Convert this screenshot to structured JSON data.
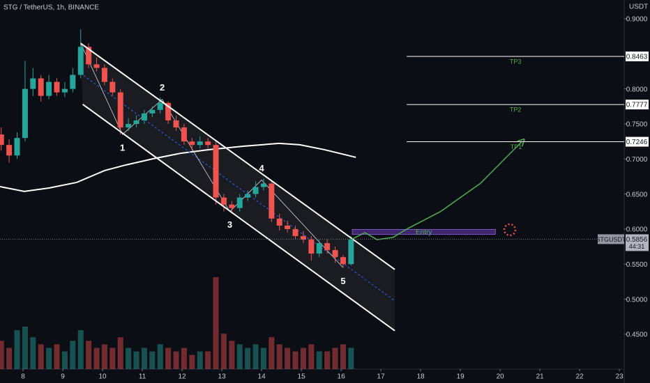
{
  "header": {
    "title": "STG / TetherUS, 1h, BINANCE",
    "currency": "USDT"
  },
  "chart_data": {
    "type": "candlestick",
    "x": [
      7.45,
      7.65,
      7.85,
      8.05,
      8.25,
      8.45,
      8.65,
      8.85,
      9.05,
      9.25,
      9.45,
      9.65,
      9.85,
      10.05,
      10.25,
      10.45,
      10.65,
      10.85,
      11.05,
      11.25,
      11.45,
      11.65,
      11.85,
      12.05,
      12.25,
      12.45,
      12.65,
      12.85,
      13.05,
      13.25,
      13.45,
      13.65,
      13.85,
      14.05,
      14.25,
      14.45,
      14.65,
      14.85,
      15.05,
      15.25,
      15.45,
      15.65,
      15.85,
      16.05,
      16.25
    ],
    "open": [
      0.735,
      0.72,
      0.705,
      0.73,
      0.8,
      0.815,
      0.79,
      0.81,
      0.795,
      0.8,
      0.82,
      0.86,
      0.835,
      0.83,
      0.81,
      0.795,
      0.745,
      0.75,
      0.755,
      0.765,
      0.77,
      0.78,
      0.755,
      0.745,
      0.725,
      0.72,
      0.725,
      0.72,
      0.645,
      0.635,
      0.63,
      0.645,
      0.65,
      0.66,
      0.665,
      0.615,
      0.605,
      0.6,
      0.59,
      0.585,
      0.565,
      0.58,
      0.57,
      0.56,
      0.55
    ],
    "high": [
      0.745,
      0.728,
      0.738,
      0.84,
      0.83,
      0.82,
      0.82,
      0.815,
      0.81,
      0.83,
      0.885,
      0.865,
      0.845,
      0.835,
      0.815,
      0.8,
      0.758,
      0.762,
      0.77,
      0.775,
      0.788,
      0.782,
      0.762,
      0.75,
      0.73,
      0.732,
      0.73,
      0.725,
      0.65,
      0.64,
      0.65,
      0.655,
      0.668,
      0.672,
      0.668,
      0.622,
      0.612,
      0.605,
      0.597,
      0.59,
      0.585,
      0.585,
      0.575,
      0.563,
      0.59
    ],
    "low": [
      0.712,
      0.695,
      0.7,
      0.725,
      0.79,
      0.782,
      0.785,
      0.79,
      0.788,
      0.795,
      0.815,
      0.83,
      0.825,
      0.805,
      0.79,
      0.735,
      0.74,
      0.745,
      0.75,
      0.76,
      0.765,
      0.75,
      0.74,
      0.72,
      0.712,
      0.715,
      0.715,
      0.635,
      0.625,
      0.622,
      0.625,
      0.64,
      0.645,
      0.655,
      0.61,
      0.598,
      0.595,
      0.585,
      0.58,
      0.555,
      0.56,
      0.565,
      0.552,
      0.545,
      0.548
    ],
    "close": [
      0.72,
      0.705,
      0.73,
      0.8,
      0.815,
      0.79,
      0.81,
      0.795,
      0.8,
      0.82,
      0.86,
      0.835,
      0.83,
      0.81,
      0.795,
      0.745,
      0.75,
      0.755,
      0.765,
      0.77,
      0.78,
      0.755,
      0.745,
      0.725,
      0.72,
      0.725,
      0.72,
      0.645,
      0.635,
      0.63,
      0.645,
      0.65,
      0.66,
      0.665,
      0.615,
      0.605,
      0.6,
      0.59,
      0.585,
      0.565,
      0.58,
      0.57,
      0.56,
      0.55,
      0.585
    ],
    "volume": [
      40,
      30,
      55,
      60,
      45,
      35,
      30,
      35,
      25,
      40,
      55,
      40,
      30,
      35,
      30,
      45,
      30,
      25,
      30,
      25,
      35,
      30,
      25,
      30,
      20,
      25,
      25,
      130,
      50,
      40,
      35,
      30,
      35,
      30,
      45,
      35,
      30,
      25,
      30,
      35,
      25,
      25,
      30,
      35,
      30
    ],
    "xlim": [
      7.42,
      23.12
    ],
    "ylim": [
      0.4003,
      0.9268
    ],
    "xticks": [
      8,
      9,
      10,
      11,
      12,
      13,
      14,
      15,
      16,
      17,
      18,
      19,
      20,
      21,
      22,
      23
    ],
    "yticks": [
      {
        "value": 0.9,
        "label": "0.9000"
      },
      {
        "value": 0.8,
        "label": "0.8000"
      },
      {
        "value": 0.75,
        "label": "0.7500"
      },
      {
        "value": 0.7,
        "label": "0.7000"
      },
      {
        "value": 0.65,
        "label": "0.6500"
      },
      {
        "value": 0.6,
        "label": "0.6000"
      },
      {
        "value": 0.55,
        "label": "0.5500"
      },
      {
        "value": 0.5,
        "label": "0.5000"
      },
      {
        "value": 0.45,
        "label": "0.4500"
      }
    ],
    "colors": {
      "up": "#26a69a",
      "down": "#ef5350"
    },
    "moving_average": {
      "x": [
        7.42,
        8.03,
        8.65,
        9.35,
        10.05,
        10.58,
        11.28,
        11.98,
        12.68,
        13.56,
        14.44,
        14.96,
        15.58,
        16.37
      ],
      "values": [
        0.6606,
        0.6537,
        0.6586,
        0.6666,
        0.6835,
        0.6914,
        0.7004,
        0.7083,
        0.7133,
        0.7183,
        0.7223,
        0.7203,
        0.7133,
        0.7024
      ]
    },
    "channel": {
      "upper": {
        "x": [
          9.45,
          17.35
        ],
        "values": [
          0.865,
          0.5424
        ]
      },
      "lower": {
        "x": [
          9.5,
          17.35
        ],
        "values": [
          0.778,
          0.455
        ]
      },
      "middle": {
        "x": [
          9.44,
          17.35
        ],
        "values": [
          0.8225,
          0.4977
        ]
      }
    },
    "waves": {
      "labels": [
        null,
        "1",
        "2",
        "3",
        "4",
        "5"
      ],
      "x": [
        9.45,
        10.5,
        11.5,
        13.2,
        14.0,
        16.05
      ],
      "values": [
        0.865,
        0.735,
        0.785,
        0.625,
        0.67,
        0.545
      ]
    },
    "targets": {
      "labels": [
        "TP3",
        "TP2",
        "TP1"
      ],
      "values": [
        0.8463,
        0.7777,
        0.7246
      ],
      "xstart": 17.65
    },
    "entry": {
      "label": "Entry",
      "x": [
        16.28,
        19.88
      ],
      "values": [
        0.5995,
        0.5925
      ]
    },
    "last_price": {
      "symbol": "STGUSDT",
      "value": 0.5856,
      "countdown": "44:31"
    },
    "projection": {
      "x": [
        16.25,
        16.6,
        16.9,
        17.3,
        17.65,
        18.5,
        19.5,
        20.2,
        20.55
      ],
      "values": [
        0.585,
        0.595,
        0.585,
        0.588,
        0.6,
        0.625,
        0.665,
        0.705,
        0.725
      ]
    }
  }
}
